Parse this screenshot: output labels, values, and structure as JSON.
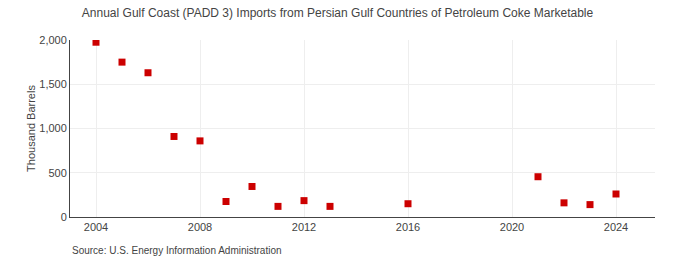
{
  "chart_data": {
    "type": "scatter",
    "title": "Annual Gulf Coast (PADD 3) Imports from Persian Gulf Countries of Petroleum Coke Marketable",
    "ylabel": "Thousand Barrels",
    "annotations": [
      "Source: U.S. Energy Information Administration"
    ],
    "x": [
      2004,
      2005,
      2006,
      2007,
      2008,
      2009,
      2010,
      2011,
      2012,
      2013,
      2016,
      2021,
      2022,
      2023,
      2024
    ],
    "values": [
      1975,
      1750,
      1630,
      910,
      860,
      175,
      345,
      120,
      185,
      120,
      150,
      455,
      160,
      140,
      260
    ],
    "color": "#cc0000",
    "marker": "square",
    "xlim": [
      2003.0,
      2025.5
    ],
    "ylim": [
      0,
      2000
    ],
    "xticks": [
      2004,
      2008,
      2012,
      2016,
      2020,
      2024
    ],
    "yticks": [
      0,
      500,
      {
        "value": 1000,
        "label": "1,000"
      },
      {
        "value": 1500,
        "label": "1,500"
      },
      {
        "value": 2000,
        "label": "2,000"
      }
    ],
    "grid": true
  }
}
